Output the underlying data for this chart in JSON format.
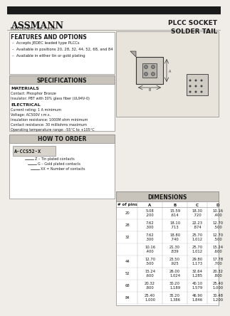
{
  "title": "PLCC SOCKET\nSOLDER TAIL",
  "company": "ASSMANN",
  "company_sub": "ELECTRONICS, INC., U.S.A.",
  "bg_color": "#f0ede8",
  "header_bar_color": "#1a1a1a",
  "features_title": "FEATURES AND OPTIONS",
  "features": [
    "Accepts JEDEC leaded type PLCCs",
    "Available in positions 20, 28, 32, 44, 52, 68, and 84",
    "Available in either tin or gold plating"
  ],
  "specs_title": "SPECIFICATIONS",
  "materials_title": "MATERIALS",
  "materials": [
    "Contact: Phosphor Bronze",
    "Insulator: PBT with 30% glass fiber (UL94V-0)"
  ],
  "electrical_title": "ELECTRICAL",
  "electrical": [
    "Current rating: 1 A minimum",
    "Voltage: AC500V r.m.s.",
    "Insulation resistance: 1000M ohm minimum",
    "Contact resistance: 30 milliohms maximum",
    "Operating temperature range: -55°C to +105°C"
  ],
  "order_title": "HOW TO ORDER",
  "order_model": "A-CCS52-X",
  "order_lines": [
    "Z – Tin plated contacts",
    "G – Gold plated contacts",
    "XX = Number of contacts"
  ],
  "dim_title": "DIMENSIONS",
  "dim_headers": [
    "# of pins",
    "A",
    "B",
    "C",
    "D"
  ],
  "dim_rows": [
    [
      "20",
      "5.08\n.200",
      "15.59\n.614",
      "18.30\n.720",
      "10.16\n.400"
    ],
    [
      "28",
      "7.62\n.300",
      "18.10\n.713",
      "22.23\n.874",
      "12.70\n.500"
    ],
    [
      "32",
      "7.62\n.300",
      "18.80\n.740",
      "25.70\n1.012",
      "12.70\n.500"
    ],
    [
      "",
      "10.16\n.400",
      "21.30\n.839",
      "25.70\n1.012",
      "15.24\n.600"
    ],
    [
      "44",
      "12.70\n.500",
      "23.50\n.925",
      "29.80\n1.173",
      "17.78\n.700"
    ],
    [
      "52",
      "15.24\n.600",
      "26.00\n1.024",
      "32.64\n1.285",
      "20.32\n.800"
    ],
    [
      "68",
      "20.32\n.800",
      "30.20\n1.189",
      "40.10\n1.579",
      "25.40\n1.000"
    ],
    [
      "84",
      "25.40\n1.000",
      "35.20\n1.386",
      "46.90\n1.846",
      "30.48\n1.200"
    ]
  ],
  "white": "#ffffff",
  "light_gray": "#d8d4cc",
  "mid_gray": "#b0a898",
  "text_color": "#1a1a1a",
  "section_bg": "#c8c4bc",
  "table_header_bg": "#c8c4bc"
}
